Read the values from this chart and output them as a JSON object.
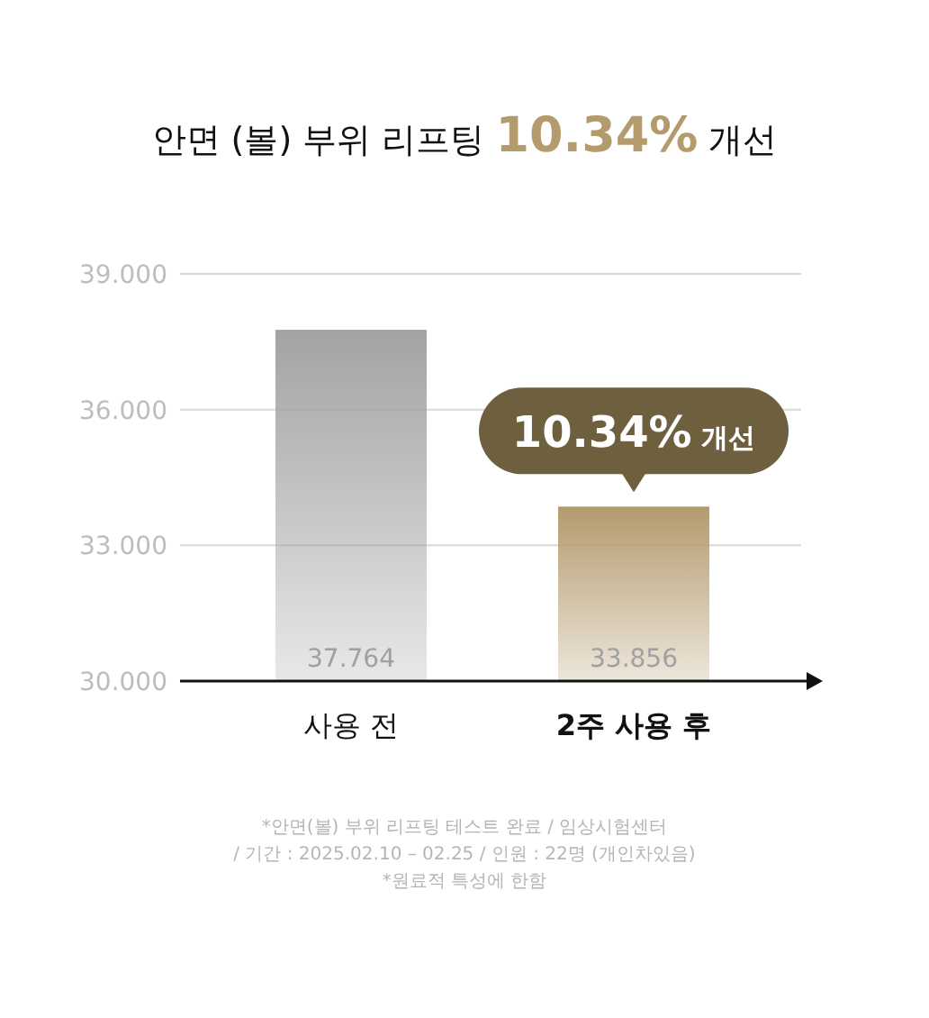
{
  "chart_data": {
    "type": "bar",
    "title": "안면 (볼) 부위 리프팅 **10.34%** 개선",
    "categories": [
      "사용 전",
      "2주 사용 후"
    ],
    "values": [
      37.764,
      33.856
    ],
    "colors": [
      "#a3a3a3",
      "#b49b6e"
    ],
    "ylim": [
      30,
      39
    ],
    "yticks": [
      {
        "value": 30,
        "label": "30.000"
      },
      {
        "value": 33,
        "label": "33.000"
      },
      {
        "value": 36,
        "label": "36.000"
      },
      {
        "value": 39,
        "label": "39.000"
      }
    ],
    "grid": "y",
    "data_labels": true,
    "annotations": [
      {
        "text": "**10.34%** 개선",
        "x": "2주 사용 후",
        "y": 33.856
      },
      "*안면(볼) 부위 리프팅 테스트 완료 / 임상시험센터",
      "/ 기간 : 2025.02.10 – 02.25 / 인원 : 22명 (개인차있음)",
      "*원료적 특성에 한함"
    ]
  }
}
